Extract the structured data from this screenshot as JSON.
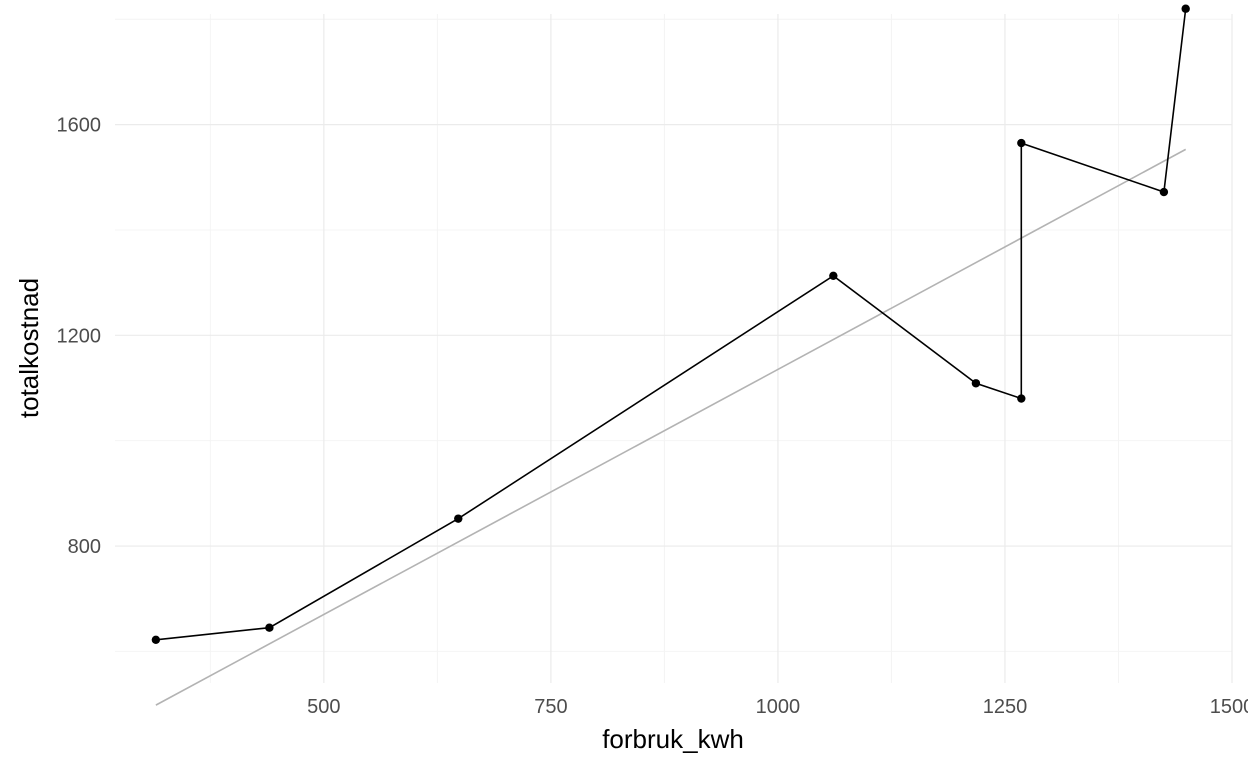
{
  "chart_data": {
    "type": "line",
    "title": "",
    "xlabel": "forbruk_kwh",
    "ylabel": "totalkostnad",
    "xlim": [
      270,
      1500
    ],
    "ylim": [
      540,
      1810
    ],
    "x_ticks": [
      500,
      750,
      1000,
      1250,
      1500
    ],
    "x_tick_labels": [
      "500",
      "750",
      "1000",
      "1250",
      "1500"
    ],
    "y_ticks": [
      800,
      1200,
      1600
    ],
    "y_tick_labels": [
      "800",
      "1200",
      "1600"
    ],
    "grid": true,
    "legend": "none",
    "colors": {
      "line": "#000000",
      "trend": "#b3b3b3",
      "grid_major": "#ebebeb",
      "grid_minor": "#f4f4f4"
    },
    "series": [
      {
        "type": "line+points",
        "points": [
          {
            "x": 315,
            "y": 622
          },
          {
            "x": 440,
            "y": 645
          },
          {
            "x": 648,
            "y": 852
          },
          {
            "x": 1061,
            "y": 1313
          },
          {
            "x": 1218,
            "y": 1109
          },
          {
            "x": 1268,
            "y": 1080
          },
          {
            "x": 1268,
            "y": 1565
          },
          {
            "x": 1425,
            "y": 1472
          },
          {
            "x": 1449,
            "y": 1820
          }
        ]
      },
      {
        "type": "trend",
        "points": [
          {
            "x": 315,
            "y": 498
          },
          {
            "x": 1449,
            "y": 1553
          }
        ]
      }
    ]
  }
}
